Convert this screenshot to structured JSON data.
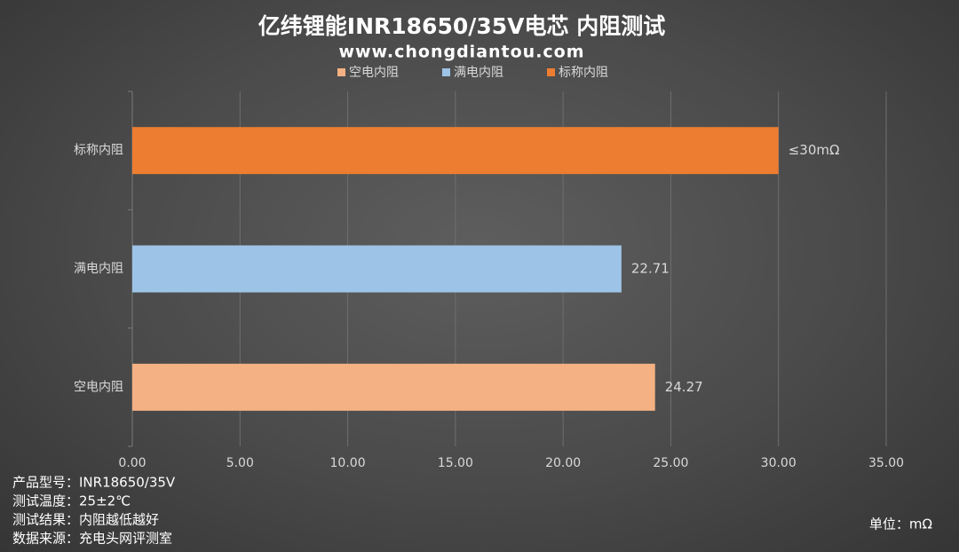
{
  "chart_data": {
    "type": "bar",
    "orientation": "horizontal",
    "title": "亿纬锂能INR18650/35V电芯 内阻测试",
    "subtitle": "www.chongdiantou.com",
    "categories": [
      "空电内阻",
      "满电内阻",
      "标称内阻"
    ],
    "values": [
      24.27,
      22.71,
      30
    ],
    "value_labels": [
      "24.27",
      "22.71",
      "≤30mΩ"
    ],
    "colors": [
      "#f4b183",
      "#9dc3e6",
      "#ed7d31"
    ],
    "xlim": [
      0,
      35
    ],
    "xticks": [
      {
        "value": 0,
        "label": "0.00"
      },
      {
        "value": 5,
        "label": "5.00"
      },
      {
        "value": 10,
        "label": "10.00"
      },
      {
        "value": 15,
        "label": "15.00"
      },
      {
        "value": 20,
        "label": "20.00"
      },
      {
        "value": 25,
        "label": "25.00"
      },
      {
        "value": 30,
        "label": "30.00"
      },
      {
        "value": 35,
        "label": "35.00"
      }
    ],
    "grid": true,
    "legend": "top",
    "notes": [
      "产品型号：INR18650/35V",
      "测试温度：25±2℃",
      "测试结果：内阻越低越好",
      "数据来源：充电头网评测室"
    ],
    "unit": "单位：mΩ"
  }
}
